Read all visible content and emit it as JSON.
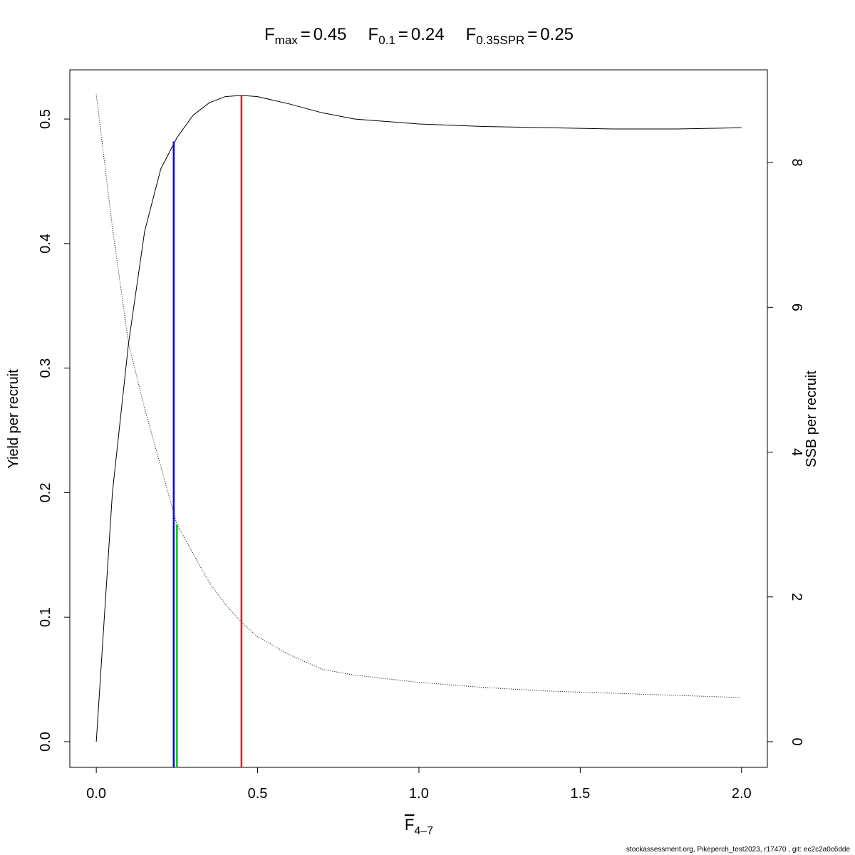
{
  "chart_data": {
    "type": "line",
    "title_parts": [
      {
        "symbol": "F",
        "subscript": "max",
        "equals": "=",
        "value": 0.45,
        "line_color": "#ff0000",
        "line_top": 0.519,
        "line_axis": "y"
      },
      {
        "symbol": "F",
        "subscript": "0.1",
        "equals": "=",
        "value": 0.24,
        "line_color": "#0000ff",
        "line_top": 0.482,
        "line_axis": "y"
      },
      {
        "symbol": "F",
        "subscript": "0.35SPR",
        "equals": "=",
        "value": 0.25,
        "line_color": "#00cc00",
        "line_top": 3.0,
        "line_axis": "y2"
      }
    ],
    "x_label": {
      "symbol": "F",
      "subscript": "4–7"
    },
    "y_label": "Yield per recruit",
    "y2_label": "SSB per recruit",
    "footer": "stockassessment.org, Pikeperch_test2023, r17470 , git: ec2c2a0c6dde",
    "x": [
      0,
      0.05,
      0.1,
      0.15,
      0.2,
      0.25,
      0.3,
      0.35,
      0.4,
      0.45,
      0.5,
      0.6,
      0.7,
      0.8,
      1.0,
      1.2,
      1.4,
      1.6,
      1.8,
      2.0
    ],
    "series": [
      {
        "color": "#000000",
        "style": "solid",
        "axis": "y",
        "values": [
          0,
          0.2,
          0.32,
          0.41,
          0.46,
          0.485,
          0.503,
          0.513,
          0.518,
          0.519,
          0.518,
          0.512,
          0.505,
          0.5,
          0.496,
          0.494,
          0.493,
          0.492,
          0.492,
          0.493
        ]
      },
      {
        "color": "#000000",
        "style": "dotted",
        "axis": "y2",
        "values": [
          8.94,
          7.1,
          5.5,
          4.6,
          3.8,
          3.0,
          2.6,
          2.2,
          1.9,
          1.65,
          1.45,
          1.2,
          1.0,
          0.92,
          0.82,
          0.75,
          0.7,
          0.67,
          0.64,
          0.61
        ]
      }
    ],
    "xlim": [
      -0.082,
      2.08
    ],
    "ylim": [
      -0.0206,
      0.5395
    ],
    "y2lim": [
      -0.354,
      9.28
    ],
    "xticks": [
      {
        "value": 0,
        "label": "0.0"
      },
      0.5,
      {
        "value": 1,
        "label": "1.0"
      },
      1.5,
      {
        "value": 2,
        "label": "2.0"
      }
    ],
    "yticks": [
      {
        "value": 0,
        "label": "0.0"
      },
      0.1,
      0.2,
      0.3,
      0.4,
      0.5
    ],
    "y2ticks": [
      0,
      2,
      4,
      6,
      8
    ]
  }
}
